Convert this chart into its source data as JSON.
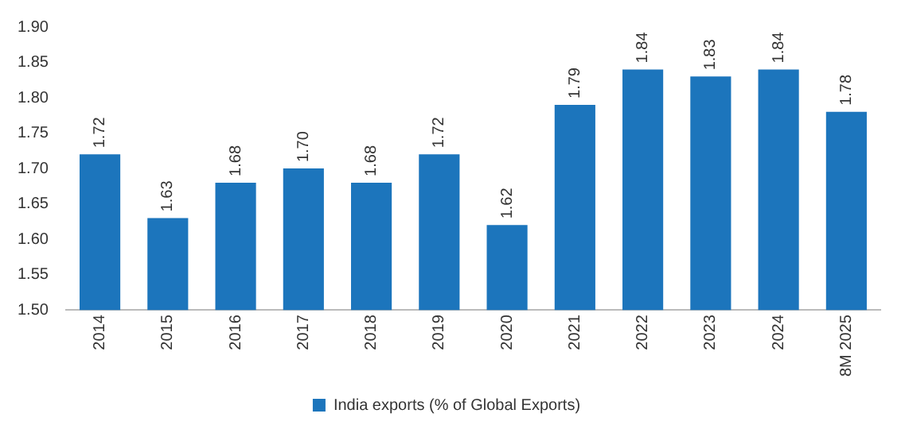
{
  "chart_data": {
    "type": "bar",
    "categories": [
      "2014",
      "2015",
      "2016",
      "2017",
      "2018",
      "2019",
      "2020",
      "2021",
      "2022",
      "2023",
      "2024",
      "8M 2025"
    ],
    "series": [
      {
        "name": "India exports (% of Global Exports)",
        "color": "#1c75bc",
        "values": [
          1.72,
          1.63,
          1.68,
          1.7,
          1.68,
          1.72,
          1.62,
          1.79,
          1.84,
          1.83,
          1.84,
          1.78
        ],
        "value_labels": [
          "1.72",
          "1.63",
          "1.68",
          "1.70",
          "1.68",
          "1.72",
          "1.62",
          "1.79",
          "1.84",
          "1.83",
          "1.84",
          "1.78"
        ]
      }
    ],
    "ylim": [
      1.5,
      1.9
    ],
    "yticks": [
      {
        "value": 1.5,
        "label": "1.50"
      },
      {
        "value": 1.55,
        "label": "1.55"
      },
      {
        "value": 1.6,
        "label": "1.60"
      },
      {
        "value": 1.65,
        "label": "1.65"
      },
      {
        "value": 1.7,
        "label": "1.70"
      },
      {
        "value": 1.75,
        "label": "1.75"
      },
      {
        "value": 1.8,
        "label": "1.80"
      },
      {
        "value": 1.85,
        "label": "1.85"
      },
      {
        "value": 1.9,
        "label": "1.90"
      }
    ],
    "grid": false,
    "legend": "bottom"
  }
}
